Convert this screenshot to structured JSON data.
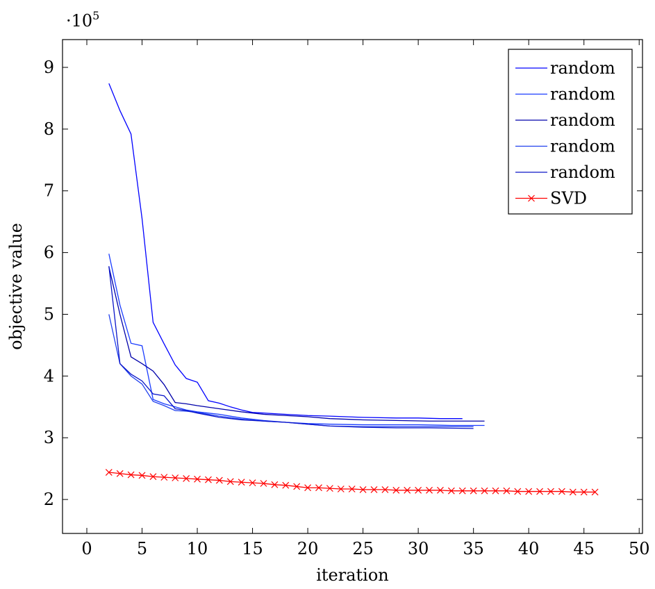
{
  "chart_data": {
    "type": "line",
    "title": "",
    "xlabel": "iteration",
    "ylabel": "objective value",
    "y_multiplier_label": "·10",
    "y_multiplier_exp": "5",
    "xlim": [
      -2.2,
      50.3
    ],
    "ylim": [
      1.45,
      9.45
    ],
    "x_ticks": [
      0,
      5,
      10,
      15,
      20,
      25,
      30,
      35,
      40,
      45,
      50
    ],
    "y_ticks": [
      2,
      3,
      4,
      5,
      6,
      7,
      8,
      9
    ],
    "grid": false,
    "legend_position": "top-right",
    "series": [
      {
        "name": "random",
        "color": "#0000ff",
        "marker": "none",
        "points": [
          [
            2,
            8.74
          ],
          [
            3,
            8.3
          ],
          [
            4,
            7.92
          ],
          [
            5,
            6.55
          ],
          [
            6,
            4.87
          ],
          [
            7,
            4.52
          ],
          [
            8,
            4.18
          ],
          [
            9,
            3.96
          ],
          [
            10,
            3.9
          ],
          [
            11,
            3.6
          ],
          [
            12,
            3.56
          ],
          [
            13,
            3.5
          ],
          [
            14,
            3.45
          ],
          [
            15,
            3.41
          ],
          [
            16,
            3.4
          ],
          [
            18,
            3.38
          ],
          [
            20,
            3.36
          ],
          [
            22,
            3.35
          ],
          [
            25,
            3.33
          ],
          [
            28,
            3.32
          ],
          [
            30,
            3.32
          ],
          [
            32,
            3.31
          ],
          [
            34,
            3.31
          ]
        ]
      },
      {
        "name": "random",
        "color": "#1a3cff",
        "marker": "none",
        "points": [
          [
            2,
            5.98
          ],
          [
            3,
            5.15
          ],
          [
            4,
            4.53
          ],
          [
            5,
            4.49
          ],
          [
            6,
            3.62
          ],
          [
            7,
            3.55
          ],
          [
            8,
            3.5
          ],
          [
            9,
            3.45
          ],
          [
            10,
            3.42
          ],
          [
            12,
            3.38
          ],
          [
            14,
            3.32
          ],
          [
            16,
            3.28
          ],
          [
            18,
            3.25
          ],
          [
            20,
            3.23
          ],
          [
            22,
            3.22
          ],
          [
            25,
            3.21
          ],
          [
            28,
            3.21
          ],
          [
            30,
            3.21
          ],
          [
            33,
            3.2
          ],
          [
            36,
            3.2
          ]
        ]
      },
      {
        "name": "random",
        "color": "#0000aa",
        "marker": "none",
        "points": [
          [
            2,
            5.77
          ],
          [
            3,
            5.0
          ],
          [
            4,
            4.31
          ],
          [
            5,
            4.2
          ],
          [
            6,
            4.08
          ],
          [
            7,
            3.86
          ],
          [
            8,
            3.57
          ],
          [
            9,
            3.55
          ],
          [
            10,
            3.52
          ],
          [
            12,
            3.47
          ],
          [
            14,
            3.42
          ],
          [
            16,
            3.38
          ],
          [
            18,
            3.36
          ],
          [
            20,
            3.34
          ],
          [
            22,
            3.31
          ],
          [
            25,
            3.29
          ],
          [
            28,
            3.28
          ],
          [
            31,
            3.27
          ],
          [
            34,
            3.27
          ],
          [
            36,
            3.27
          ]
        ]
      },
      {
        "name": "random",
        "color": "#2040ee",
        "marker": "none",
        "points": [
          [
            2,
            5.0
          ],
          [
            3,
            4.2
          ],
          [
            4,
            4.0
          ],
          [
            5,
            3.87
          ],
          [
            6,
            3.59
          ],
          [
            7,
            3.52
          ],
          [
            8,
            3.44
          ],
          [
            9,
            3.43
          ],
          [
            10,
            3.41
          ],
          [
            12,
            3.35
          ],
          [
            14,
            3.3
          ],
          [
            16,
            3.27
          ],
          [
            18,
            3.25
          ],
          [
            20,
            3.22
          ],
          [
            22,
            3.19
          ],
          [
            25,
            3.18
          ],
          [
            28,
            3.18
          ],
          [
            31,
            3.18
          ],
          [
            35,
            3.18
          ]
        ]
      },
      {
        "name": "random",
        "color": "#0a14c8",
        "marker": "none",
        "points": [
          [
            2,
            5.78
          ],
          [
            3,
            4.2
          ],
          [
            4,
            4.03
          ],
          [
            5,
            3.92
          ],
          [
            6,
            3.71
          ],
          [
            7,
            3.68
          ],
          [
            8,
            3.47
          ],
          [
            9,
            3.44
          ],
          [
            10,
            3.4
          ],
          [
            12,
            3.33
          ],
          [
            14,
            3.29
          ],
          [
            16,
            3.27
          ],
          [
            18,
            3.25
          ],
          [
            20,
            3.22
          ],
          [
            22,
            3.19
          ],
          [
            25,
            3.17
          ],
          [
            28,
            3.16
          ],
          [
            31,
            3.16
          ],
          [
            35,
            3.15
          ]
        ]
      },
      {
        "name": "SVD",
        "color": "#ff0000",
        "marker": "x",
        "points": [
          [
            2,
            2.44
          ],
          [
            3,
            2.42
          ],
          [
            4,
            2.4
          ],
          [
            5,
            2.39
          ],
          [
            6,
            2.37
          ],
          [
            7,
            2.36
          ],
          [
            8,
            2.35
          ],
          [
            9,
            2.34
          ],
          [
            10,
            2.33
          ],
          [
            11,
            2.32
          ],
          [
            12,
            2.31
          ],
          [
            13,
            2.29
          ],
          [
            14,
            2.28
          ],
          [
            15,
            2.27
          ],
          [
            16,
            2.26
          ],
          [
            17,
            2.24
          ],
          [
            18,
            2.23
          ],
          [
            19,
            2.21
          ],
          [
            20,
            2.19
          ],
          [
            21,
            2.19
          ],
          [
            22,
            2.18
          ],
          [
            23,
            2.17
          ],
          [
            24,
            2.17
          ],
          [
            25,
            2.16
          ],
          [
            26,
            2.16
          ],
          [
            27,
            2.16
          ],
          [
            28,
            2.15
          ],
          [
            29,
            2.15
          ],
          [
            30,
            2.15
          ],
          [
            31,
            2.15
          ],
          [
            32,
            2.15
          ],
          [
            33,
            2.14
          ],
          [
            34,
            2.14
          ],
          [
            35,
            2.14
          ],
          [
            36,
            2.14
          ],
          [
            37,
            2.14
          ],
          [
            38,
            2.14
          ],
          [
            39,
            2.13
          ],
          [
            40,
            2.13
          ],
          [
            41,
            2.13
          ],
          [
            42,
            2.13
          ],
          [
            43,
            2.13
          ],
          [
            44,
            2.12
          ],
          [
            45,
            2.12
          ],
          [
            46,
            2.12
          ]
        ]
      }
    ]
  }
}
